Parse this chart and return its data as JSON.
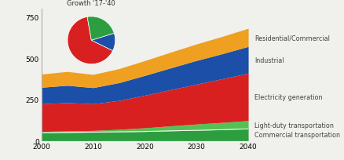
{
  "years": [
    2000,
    2005,
    2010,
    2015,
    2020,
    2025,
    2030,
    2035,
    2040
  ],
  "commercial_transportation": [
    48,
    50,
    52,
    54,
    56,
    60,
    63,
    67,
    72
  ],
  "light_duty_transportation": [
    8,
    9,
    10,
    15,
    22,
    30,
    38,
    44,
    50
  ],
  "electricity_generation": [
    168,
    172,
    162,
    175,
    198,
    220,
    242,
    265,
    288
  ],
  "industrial": [
    100,
    105,
    98,
    108,
    120,
    132,
    144,
    152,
    162
  ],
  "residential_commercial": [
    80,
    84,
    80,
    85,
    90,
    95,
    100,
    105,
    110
  ],
  "colors": {
    "commercial_transportation": "#2d9e40",
    "light_duty_transportation": "#55c155",
    "electricity_generation": "#d92020",
    "industrial": "#1b4fa8",
    "residential_commercial": "#f0a020"
  },
  "pie_values": [
    65,
    12,
    23
  ],
  "pie_colors": [
    "#d92020",
    "#1b4fa8",
    "#2d9e40"
  ],
  "pie_startangle": 100,
  "pie_title": "Growth '17-'40",
  "ylim": [
    0,
    800
  ],
  "yticks": [
    0,
    250,
    500,
    750
  ],
  "xlim": [
    2000,
    2040
  ],
  "xticks": [
    2000,
    2010,
    2020,
    2030,
    2040
  ],
  "labels": {
    "residential_commercial": "Residential/Commercial",
    "industrial": "Industrial",
    "electricity_generation": "Electricity generation",
    "light_duty_transportation": "Light-duty transportation",
    "commercial_transportation": "Commercial transportation"
  },
  "background_color": "#f0f0ec"
}
